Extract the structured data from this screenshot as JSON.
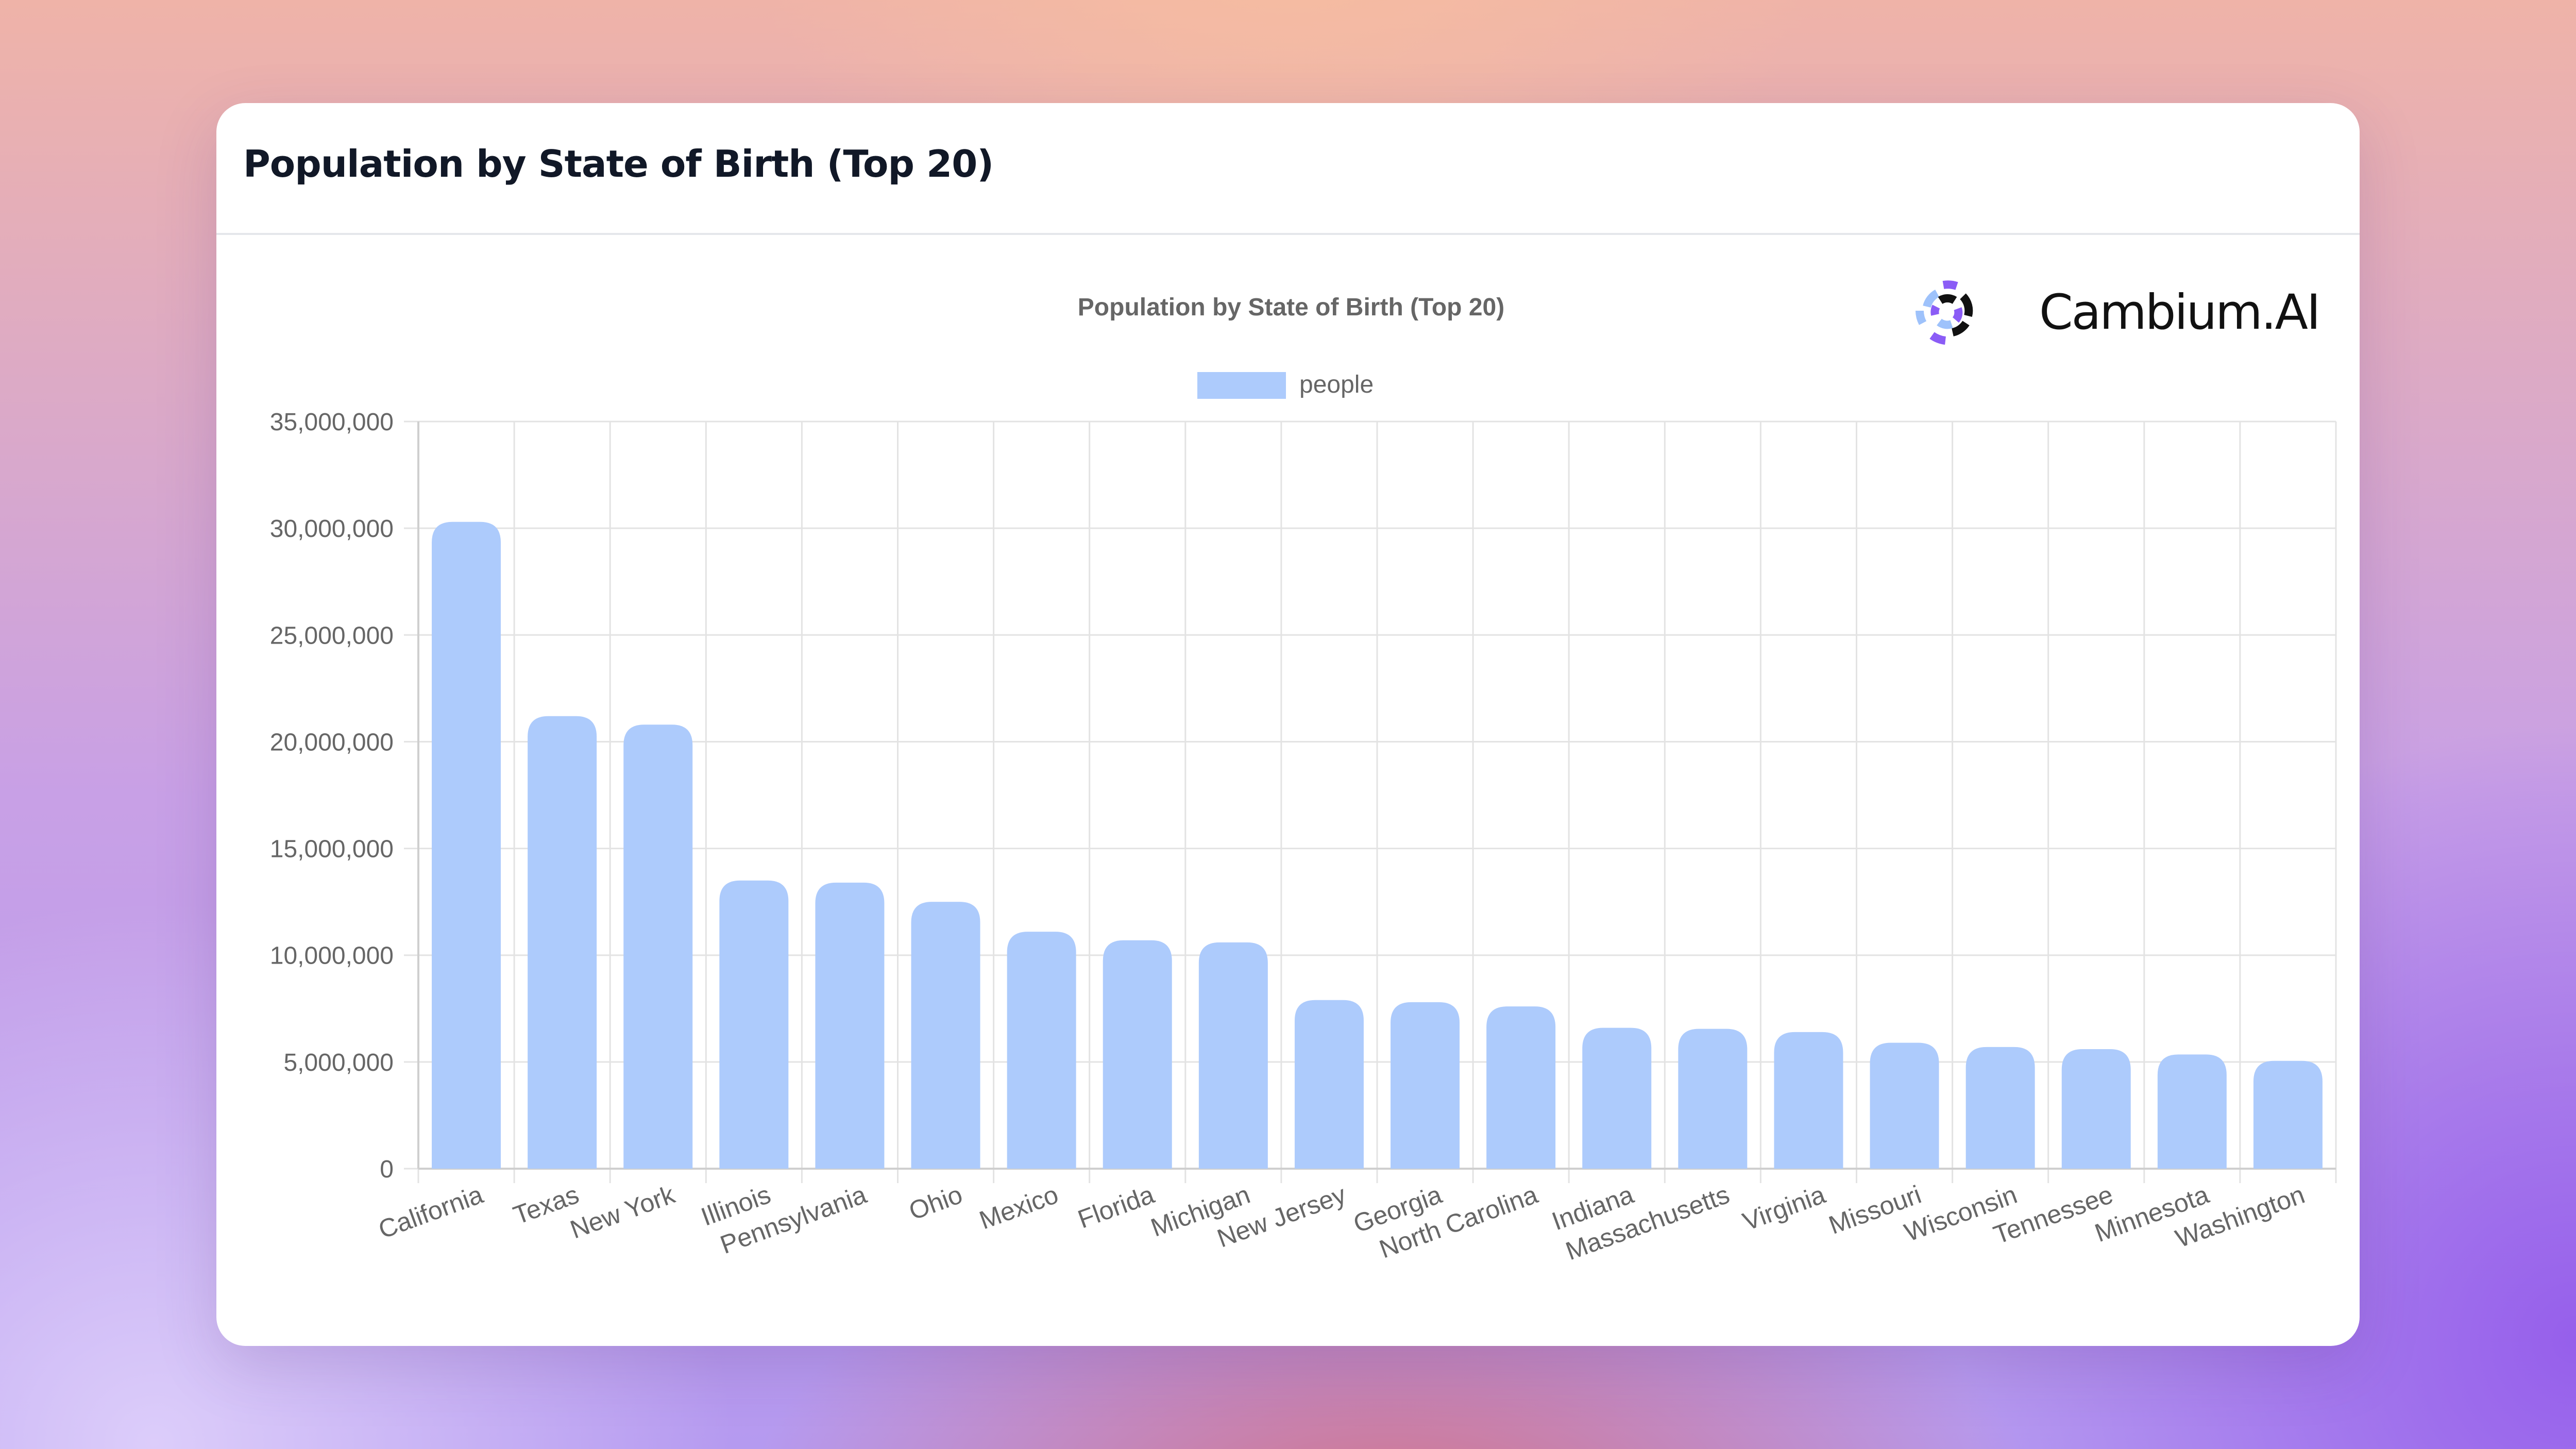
{
  "page": {
    "title": "Population by State of Birth (Top 20)"
  },
  "brand": {
    "name": "Cambium.AI"
  },
  "colors": {
    "bar": "#adcbfc",
    "grid": "#e3e3e3",
    "text": "#666666",
    "title_text": "#666666"
  },
  "chart_data": {
    "type": "bar",
    "title": "Population by State of Birth (Top 20)",
    "xlabel": "",
    "ylabel": "",
    "legend": {
      "position": "top-center",
      "entries": [
        "people"
      ]
    },
    "grid": true,
    "ylim": [
      0,
      35000000
    ],
    "yticks": [
      0,
      5000000,
      10000000,
      15000000,
      20000000,
      25000000,
      30000000,
      35000000
    ],
    "ytick_labels": [
      "0",
      "5,000,000",
      "10,000,000",
      "15,000,000",
      "20,000,000",
      "25,000,000",
      "30,000,000",
      "35,000,000"
    ],
    "categories": [
      "California",
      "Texas",
      "New York",
      "Illinois",
      "Pennsylvania",
      "Ohio",
      "Mexico",
      "Florida",
      "Michigan",
      "New Jersey",
      "Georgia",
      "North Carolina",
      "Indiana",
      "Massachusetts",
      "Virginia",
      "Missouri",
      "Wisconsin",
      "Tennessee",
      "Minnesota",
      "Washington"
    ],
    "series": [
      {
        "name": "people",
        "values": [
          30300000,
          21200000,
          20800000,
          13500000,
          13400000,
          12500000,
          11100000,
          10700000,
          10600000,
          7900000,
          7800000,
          7600000,
          6600000,
          6550000,
          6400000,
          5900000,
          5700000,
          5600000,
          5350000,
          5050000
        ]
      }
    ]
  }
}
